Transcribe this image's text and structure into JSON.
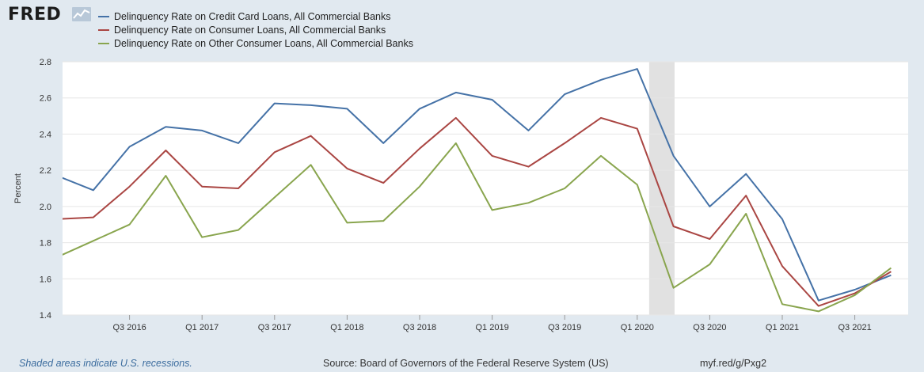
{
  "header": {
    "logo_text": "FRED",
    "logo_icon": "line-chart-icon"
  },
  "legend": [
    {
      "label": "Delinquency Rate on Credit Card Loans, All Commercial Banks",
      "color": "#4572a7"
    },
    {
      "label": "Delinquency Rate on Consumer Loans, All Commercial Banks",
      "color": "#aa4643"
    },
    {
      "label": "Delinquency Rate on Other Consumer Loans, All Commercial Banks",
      "color": "#89a54e"
    }
  ],
  "footer": {
    "recession_note": "Shaded areas indicate U.S. recessions.",
    "source": "Source: Board of Governors of the Federal Reserve System (US)",
    "short_url": "myf.red/g/Pxg2"
  },
  "chart_data": {
    "type": "line",
    "ylabel": "Percent",
    "ylim": [
      1.4,
      2.8
    ],
    "yticks": [
      1.4,
      1.6,
      1.8,
      2.0,
      2.2,
      2.4,
      2.6,
      2.8
    ],
    "grid": true,
    "x": [
      "Q1 2016",
      "Q2 2016",
      "Q3 2016",
      "Q4 2016",
      "Q1 2017",
      "Q2 2017",
      "Q3 2017",
      "Q4 2017",
      "Q1 2018",
      "Q2 2018",
      "Q3 2018",
      "Q4 2018",
      "Q1 2019",
      "Q2 2019",
      "Q3 2019",
      "Q4 2019",
      "Q1 2020",
      "Q2 2020",
      "Q3 2020",
      "Q4 2020",
      "Q1 2021",
      "Q2 2021",
      "Q3 2021",
      "Q4 2021"
    ],
    "xtick_labels": [
      "Q3 2016",
      "Q1 2017",
      "Q3 2017",
      "Q1 2018",
      "Q3 2018",
      "Q1 2019",
      "Q3 2019",
      "Q1 2020",
      "Q3 2020",
      "Q1 2021",
      "Q3 2021"
    ],
    "recessions": [
      [
        "Q1 2020",
        "Q2 2020"
      ]
    ],
    "series": [
      {
        "name": "Delinquency Rate on Credit Card Loans, All Commercial Banks",
        "color": "#4572a7",
        "values": [
          2.17,
          2.09,
          2.33,
          2.44,
          2.42,
          2.35,
          2.57,
          2.56,
          2.54,
          2.35,
          2.54,
          2.63,
          2.59,
          2.42,
          2.62,
          2.7,
          2.76,
          2.28,
          2.0,
          2.18,
          1.93,
          1.48,
          1.54,
          1.62
        ]
      },
      {
        "name": "Delinquency Rate on Consumer Loans, All Commercial Banks",
        "color": "#aa4643",
        "values": [
          1.93,
          1.94,
          2.11,
          2.31,
          2.11,
          2.1,
          2.3,
          2.39,
          2.21,
          2.13,
          2.32,
          2.49,
          2.28,
          2.22,
          2.35,
          2.49,
          2.43,
          1.89,
          1.82,
          2.06,
          1.67,
          1.45,
          1.52,
          1.64
        ]
      },
      {
        "name": "Delinquency Rate on Other Consumer Loans, All Commercial Banks",
        "color": "#89a54e",
        "values": [
          1.72,
          1.81,
          1.9,
          2.17,
          1.83,
          1.87,
          2.05,
          2.23,
          1.91,
          1.92,
          2.11,
          2.35,
          1.98,
          2.02,
          2.1,
          2.28,
          2.12,
          1.55,
          1.68,
          1.96,
          1.46,
          1.42,
          1.51,
          1.66
        ]
      }
    ]
  }
}
